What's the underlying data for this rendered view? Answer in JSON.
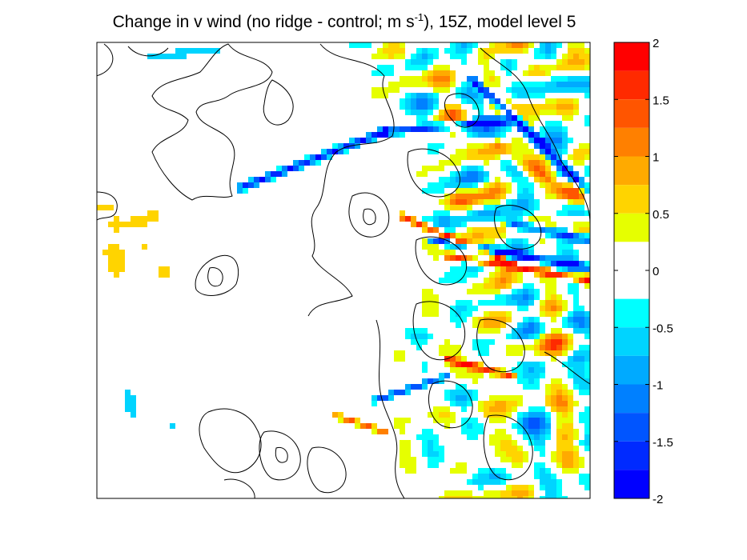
{
  "chart_data": {
    "type": "heatmap",
    "title": {
      "prefix": "Change in v wind (no ridge - control; m s",
      "superscript": "-1",
      "suffix": "), 15Z, model level 5"
    },
    "xlabel": "",
    "ylabel": "",
    "grid": false,
    "colorbar": {
      "placement": "right",
      "vmin": -2,
      "vmax": 2,
      "ticks": [
        2,
        1.5,
        1,
        0.5,
        0,
        -0.5,
        -1,
        -1.5,
        -2
      ],
      "tick_labels": [
        "2",
        "1.5",
        "1",
        "0.5",
        "0",
        "-0.5",
        "-1",
        "-1.5",
        "-2"
      ],
      "levels": [
        {
          "from": 1.75,
          "to": 2.0,
          "color": "#ff0000"
        },
        {
          "from": 1.5,
          "to": 1.75,
          "color": "#ff2a00"
        },
        {
          "from": 1.25,
          "to": 1.5,
          "color": "#ff5500"
        },
        {
          "from": 1.0,
          "to": 1.25,
          "color": "#ff8000"
        },
        {
          "from": 0.75,
          "to": 1.0,
          "color": "#ffaa00"
        },
        {
          "from": 0.5,
          "to": 0.75,
          "color": "#ffd400"
        },
        {
          "from": 0.25,
          "to": 0.5,
          "color": "#e6ff00"
        },
        {
          "from": -0.25,
          "to": 0.25,
          "color": "#ffffff"
        },
        {
          "from": -0.5,
          "to": -0.25,
          "color": "#00ffff"
        },
        {
          "from": -0.75,
          "to": -0.5,
          "color": "#00d4ff"
        },
        {
          "from": -1.0,
          "to": -0.75,
          "color": "#00aaff"
        },
        {
          "from": -1.25,
          "to": -1.0,
          "color": "#0080ff"
        },
        {
          "from": -1.5,
          "to": -1.25,
          "color": "#0055ff"
        },
        {
          "from": -1.75,
          "to": -1.5,
          "color": "#002aff"
        },
        {
          "from": -2.0,
          "to": -1.75,
          "color": "#0000ff"
        }
      ]
    },
    "field_description_values": {
      "west_region_mean": 0.0,
      "east_region_max": 2.0,
      "east_region_min": -2.0
    }
  }
}
